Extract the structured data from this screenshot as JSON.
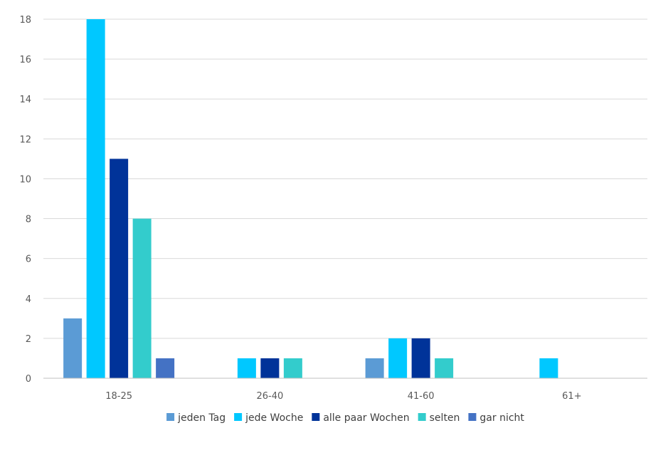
{
  "chart_data": {
    "type": "bar",
    "categories": [
      "18-25",
      "26-40",
      "41-60",
      "61+"
    ],
    "series": [
      {
        "name": "jeden Tag",
        "color": "#5b9bd5",
        "values": [
          3,
          0,
          1,
          0
        ]
      },
      {
        "name": "jede Woche",
        "color": "#00c8ff",
        "values": [
          18,
          1,
          2,
          1
        ]
      },
      {
        "name": "alle paar Wochen",
        "color": "#003399",
        "values": [
          11,
          1,
          2,
          0
        ]
      },
      {
        "name": "selten",
        "color": "#33cccc",
        "values": [
          8,
          1,
          1,
          0
        ]
      },
      {
        "name": "gar nicht",
        "color": "#4472c4",
        "values": [
          1,
          0,
          0,
          0
        ]
      }
    ],
    "ylim": [
      0,
      18
    ],
    "yticks": [
      0,
      2,
      4,
      6,
      8,
      10,
      12,
      14,
      16,
      18
    ],
    "grid": true,
    "legend": "bottom"
  }
}
